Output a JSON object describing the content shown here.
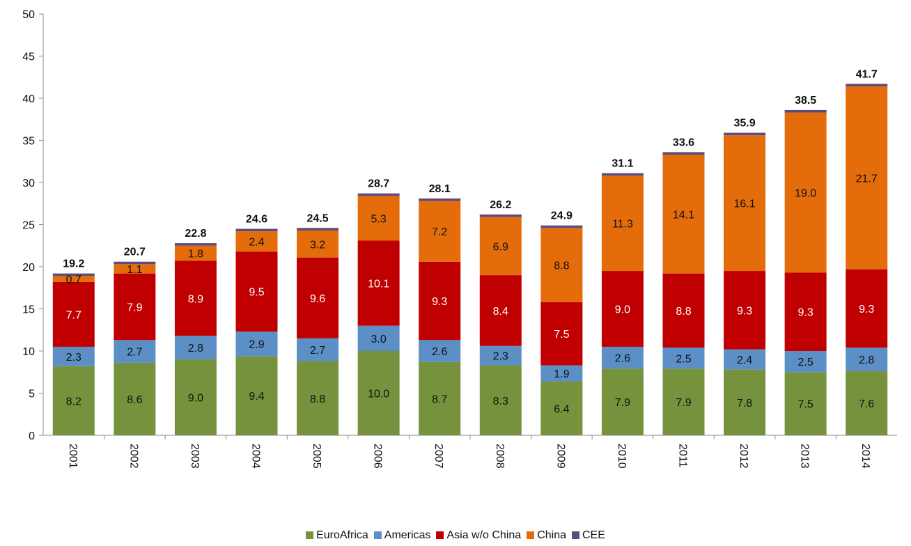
{
  "chart_data": {
    "type": "bar",
    "stacked": true,
    "categories": [
      "2001",
      "2002",
      "2003",
      "2004",
      "2005",
      "2006",
      "2007",
      "2008",
      "2009",
      "2010",
      "2011",
      "2012",
      "2013",
      "2014"
    ],
    "series": [
      {
        "name": "EuroAfrica",
        "color": "#76923c",
        "label_color": "#111111",
        "values": [
          8.2,
          8.6,
          9.0,
          9.4,
          8.8,
          10.0,
          8.7,
          8.3,
          6.4,
          7.9,
          7.9,
          7.8,
          7.5,
          7.6
        ],
        "labels": [
          "8.2",
          "8.6",
          "9.0",
          "9.4",
          "8.8",
          "10.0",
          "8.7",
          "8.3",
          "6.4",
          "7.9",
          "7.9",
          "7.8",
          "7.5",
          "7.6"
        ]
      },
      {
        "name": "Americas",
        "color": "#5b8fc6",
        "label_color": "#111111",
        "values": [
          2.3,
          2.7,
          2.8,
          2.9,
          2.7,
          3.0,
          2.6,
          2.3,
          1.9,
          2.6,
          2.5,
          2.4,
          2.5,
          2.8
        ],
        "labels": [
          "2.3",
          "2.7",
          "2.8",
          "2.9",
          "2.7",
          "3.0",
          "2.6",
          "2.3",
          "1.9",
          "2.6",
          "2.5",
          "2.4",
          "2.5",
          "2.8"
        ]
      },
      {
        "name": "Asia w/o China",
        "color": "#c00000",
        "label_color": "#ffffff",
        "values": [
          7.7,
          7.9,
          8.9,
          9.5,
          9.6,
          10.1,
          9.3,
          8.4,
          7.5,
          9.0,
          8.8,
          9.3,
          9.3,
          9.3
        ],
        "labels": [
          "7.7",
          "7.9",
          "8.9",
          "9.5",
          "9.6",
          "10.1",
          "9.3",
          "8.4",
          "7.5",
          "9.0",
          "8.8",
          "9.3",
          "9.3",
          "9.3"
        ]
      },
      {
        "name": "China",
        "color": "#e46c0a",
        "label_color": "#111111",
        "values": [
          0.7,
          1.1,
          1.8,
          2.4,
          3.2,
          5.3,
          7.2,
          6.9,
          8.8,
          11.3,
          14.1,
          16.1,
          19.0,
          21.7
        ],
        "labels": [
          "0.7",
          "1.1",
          "1.8",
          "2.4",
          "3.2",
          "5.3",
          "7.2",
          "6.9",
          "8.8",
          "11.3",
          "14.1",
          "16.1",
          "19.0",
          "21.7"
        ]
      },
      {
        "name": "CEE",
        "color": "#604a7b",
        "label_color": "#111111",
        "values": [
          0.3,
          0.3,
          0.3,
          0.3,
          0.3,
          0.3,
          0.3,
          0.3,
          0.3,
          0.3,
          0.3,
          0.3,
          0.3,
          0.3
        ],
        "labels": [
          "",
          "",
          "",
          "",
          "",
          "",
          "",
          "",
          "",
          "",
          "",
          "",
          "",
          ""
        ]
      }
    ],
    "totals": [
      "19.2",
      "20.7",
      "22.8",
      "24.6",
      "24.5",
      "28.7",
      "28.1",
      "26.2",
      "24.9",
      "31.1",
      "33.6",
      "35.9",
      "38.5",
      "41.7"
    ],
    "yticks": [
      "0",
      "5",
      "10",
      "15",
      "20",
      "25",
      "30",
      "35",
      "40",
      "45",
      "50"
    ],
    "ylim": [
      0,
      50
    ],
    "title": "",
    "xlabel": "",
    "ylabel": "",
    "grid": false,
    "legend_position": "bottom"
  }
}
